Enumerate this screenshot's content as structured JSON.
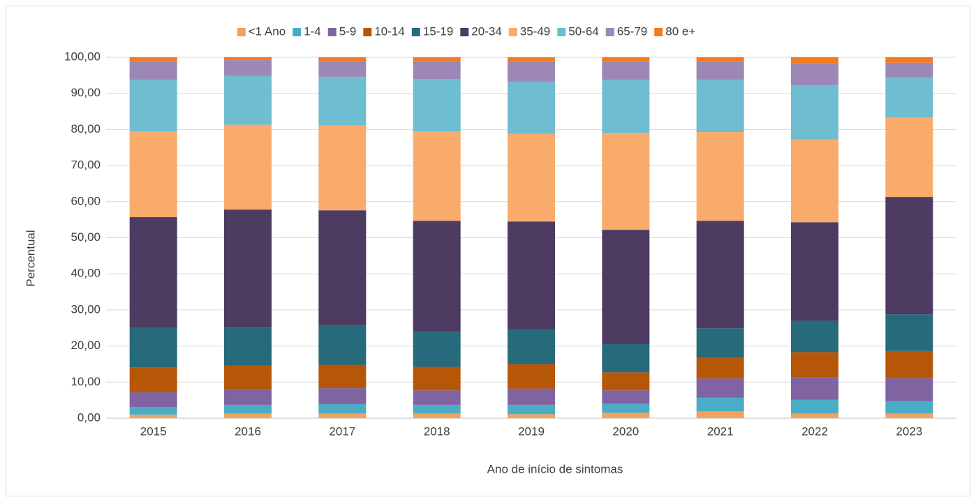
{
  "chart_data": {
    "type": "stacked_bar",
    "x_label": "Ano de início de sintomas",
    "y_label": "Percentual",
    "categories": [
      "2015",
      "2016",
      "2017",
      "2018",
      "2019",
      "2020",
      "2021",
      "2022",
      "2023"
    ],
    "ylim": [
      0,
      100
    ],
    "yticks": [
      {
        "value": 0,
        "label": "0,00"
      },
      {
        "value": 10,
        "label": "10,00"
      },
      {
        "value": 20,
        "label": "20,00"
      },
      {
        "value": 30,
        "label": "30,00"
      },
      {
        "value": 40,
        "label": "40,00"
      },
      {
        "value": 50,
        "label": "50,00"
      },
      {
        "value": 60,
        "label": "60,00"
      },
      {
        "value": 70,
        "label": "70,00"
      },
      {
        "value": 80,
        "label": "80,00"
      },
      {
        "value": 90,
        "label": "90,00"
      },
      {
        "value": 100,
        "label": "100,00"
      }
    ],
    "grid": true,
    "legend": "top",
    "series": [
      {
        "name": "<1 Ano",
        "color": "#f4a15a",
        "values": [
          1.0,
          1.3,
          1.3,
          1.3,
          1.1,
          1.5,
          1.9,
          1.3,
          1.3
        ]
      },
      {
        "name": "1-4",
        "color": "#4bacc6",
        "values": [
          2.1,
          2.4,
          2.6,
          2.4,
          2.6,
          2.5,
          3.8,
          3.8,
          3.4
        ]
      },
      {
        "name": "5-9",
        "color": "#8064a2",
        "values": [
          4.1,
          4.3,
          4.4,
          4.0,
          4.5,
          3.7,
          5.3,
          6.2,
          6.4
        ]
      },
      {
        "name": "10-14",
        "color": "#b65708",
        "values": [
          6.9,
          6.6,
          6.5,
          6.5,
          6.8,
          5.0,
          5.7,
          7.0,
          7.5
        ]
      },
      {
        "name": "15-19",
        "color": "#276a7c",
        "values": [
          10.9,
          10.6,
          10.9,
          9.8,
          9.5,
          7.8,
          8.2,
          8.7,
          10.2
        ]
      },
      {
        "name": "20-34",
        "color": "#4d3b62",
        "values": [
          30.7,
          32.6,
          31.9,
          30.7,
          30.0,
          31.7,
          29.8,
          27.3,
          32.5
        ]
      },
      {
        "name": "35-49",
        "color": "#f9ab6b",
        "values": [
          23.8,
          23.5,
          23.5,
          24.8,
          24.3,
          26.8,
          24.6,
          22.9,
          22.0
        ]
      },
      {
        "name": "50-64",
        "color": "#6fbdd1",
        "values": [
          14.3,
          13.5,
          13.5,
          14.5,
          14.4,
          14.8,
          14.5,
          15.0,
          11.1
        ]
      },
      {
        "name": "65-79",
        "color": "#9c87b7",
        "values": [
          5.2,
          4.4,
          4.4,
          5.0,
          5.5,
          4.9,
          4.9,
          6.2,
          4.1
        ]
      },
      {
        "name": "80 e+",
        "color": "#f47a1f",
        "values": [
          1.0,
          0.8,
          1.0,
          1.0,
          1.3,
          1.3,
          1.3,
          1.6,
          1.5
        ]
      }
    ]
  }
}
